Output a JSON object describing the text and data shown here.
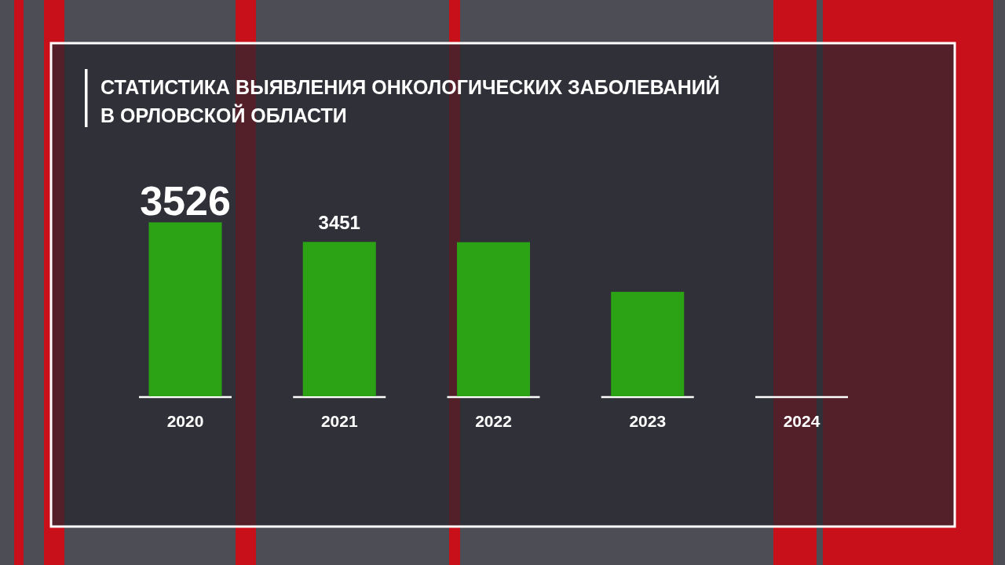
{
  "chart_data": {
    "type": "bar",
    "title": "СТАТИСТИКА ВЫЯВЛЕНИЯ ОНКОЛОГИЧЕСКИХ ЗАБОЛЕВАНИЙ\nВ ОРЛОВСКОЙ ОБЛАСТИ",
    "categories": [
      "2020",
      "2021",
      "2022",
      "2023",
      "2024"
    ],
    "values": [
      3526,
      3451,
      3450,
      3260,
      null
    ],
    "value_labels": [
      "3526",
      "3451",
      null,
      null,
      null
    ],
    "color": "#2ba315",
    "ylim": [
      2860,
      3530
    ],
    "tick_labels": "x"
  }
}
